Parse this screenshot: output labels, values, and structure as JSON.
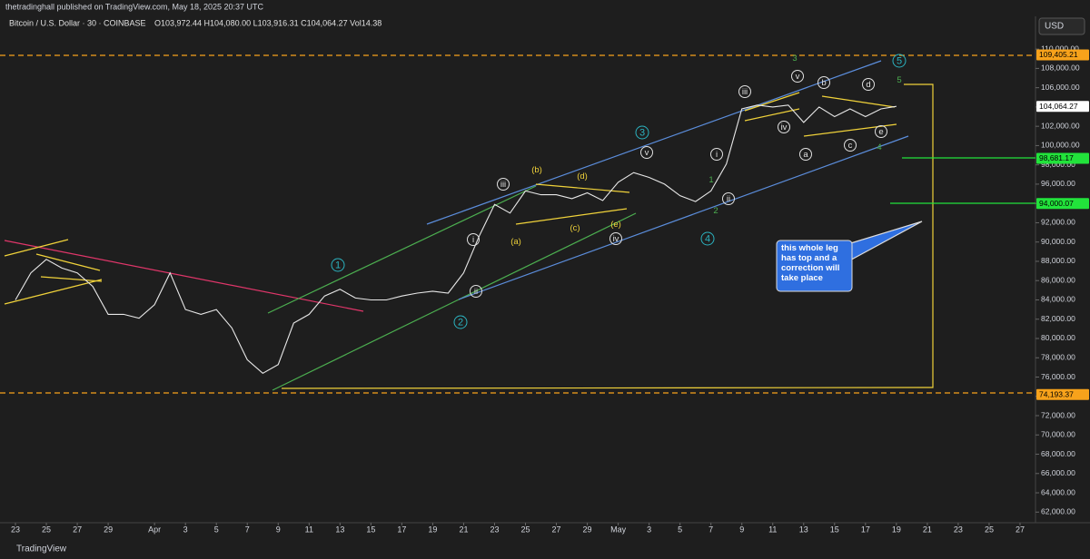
{
  "header": {
    "publisher": "thetradinghall published on TradingView.com, May 18, 2025 20:37 UTC",
    "symbol": "Bitcoin / U.S. Dollar · 30 · COINBASE",
    "ohlc": "O103,972.44 H104,080.00 L103,916.31 C104,064.27 Vol14.38",
    "currency": "USD"
  },
  "footer": {
    "brand": "TradingView"
  },
  "chart_data": {
    "type": "line",
    "color": "#e8e8e8",
    "x": [
      "2025-03-23",
      "2025-03-24",
      "2025-03-25",
      "2025-03-26",
      "2025-03-27",
      "2025-03-28",
      "2025-03-29",
      "2025-03-30",
      "2025-03-31",
      "2025-04-01",
      "2025-04-02",
      "2025-04-03",
      "2025-04-04",
      "2025-04-05",
      "2025-04-06",
      "2025-04-07",
      "2025-04-08",
      "2025-04-09",
      "2025-04-10",
      "2025-04-11",
      "2025-04-12",
      "2025-04-13",
      "2025-04-14",
      "2025-04-15",
      "2025-04-16",
      "2025-04-17",
      "2025-04-18",
      "2025-04-19",
      "2025-04-20",
      "2025-04-21",
      "2025-04-22",
      "2025-04-23",
      "2025-04-24",
      "2025-04-25",
      "2025-04-26",
      "2025-04-27",
      "2025-04-28",
      "2025-04-29",
      "2025-04-30",
      "2025-05-01",
      "2025-05-02",
      "2025-05-03",
      "2025-05-04",
      "2025-05-05",
      "2025-05-06",
      "2025-05-07",
      "2025-05-08",
      "2025-05-09",
      "2025-05-10",
      "2025-05-11",
      "2025-05-12",
      "2025-05-13",
      "2025-05-14",
      "2025-05-15",
      "2025-05-16",
      "2025-05-17",
      "2025-05-18",
      "2025-05-19"
    ],
    "values": [
      84000,
      86800,
      88200,
      87300,
      86800,
      85400,
      82500,
      82500,
      82100,
      83500,
      86800,
      83000,
      82500,
      83000,
      81100,
      77800,
      76400,
      77300,
      81600,
      82500,
      84400,
      85100,
      84200,
      84000,
      84000,
      84400,
      84700,
      84900,
      84700,
      86800,
      90600,
      93900,
      93000,
      95300,
      94900,
      94900,
      94500,
      95100,
      94300,
      96200,
      97200,
      96700,
      96000,
      94800,
      94200,
      95300,
      98100,
      103800,
      104200,
      104000,
      104200,
      102400,
      104000,
      103000,
      103800,
      103000,
      103800,
      104064.27
    ],
    "xlim": [
      "2025-03-22",
      "2025-05-28"
    ],
    "xticks": [
      {
        "value": "2025-03-23",
        "label": "23"
      },
      {
        "value": "2025-03-25",
        "label": "25"
      },
      {
        "value": "2025-03-27",
        "label": "27"
      },
      {
        "value": "2025-03-29",
        "label": "29"
      },
      {
        "value": "2025-04-01",
        "label": "Apr"
      },
      {
        "value": "2025-04-03",
        "label": "3"
      },
      {
        "value": "2025-04-05",
        "label": "5"
      },
      {
        "value": "2025-04-07",
        "label": "7"
      },
      {
        "value": "2025-04-09",
        "label": "9"
      },
      {
        "value": "2025-04-11",
        "label": "11"
      },
      {
        "value": "2025-04-13",
        "label": "13"
      },
      {
        "value": "2025-04-15",
        "label": "15"
      },
      {
        "value": "2025-04-17",
        "label": "17"
      },
      {
        "value": "2025-04-19",
        "label": "19"
      },
      {
        "value": "2025-04-21",
        "label": "21"
      },
      {
        "value": "2025-04-23",
        "label": "23"
      },
      {
        "value": "2025-04-25",
        "label": "25"
      },
      {
        "value": "2025-04-27",
        "label": "27"
      },
      {
        "value": "2025-04-29",
        "label": "29"
      },
      {
        "value": "2025-05-01",
        "label": "May"
      },
      {
        "value": "2025-05-03",
        "label": "3"
      },
      {
        "value": "2025-05-05",
        "label": "5"
      },
      {
        "value": "2025-05-07",
        "label": "7"
      },
      {
        "value": "2025-05-09",
        "label": "9"
      },
      {
        "value": "2025-05-11",
        "label": "11"
      },
      {
        "value": "2025-05-13",
        "label": "13"
      },
      {
        "value": "2025-05-15",
        "label": "15"
      },
      {
        "value": "2025-05-17",
        "label": "17"
      },
      {
        "value": "2025-05-19",
        "label": "19"
      },
      {
        "value": "2025-05-21",
        "label": "21"
      },
      {
        "value": "2025-05-23",
        "label": "23"
      },
      {
        "value": "2025-05-25",
        "label": "25"
      },
      {
        "value": "2025-05-27",
        "label": "27"
      }
    ],
    "ylim": [
      60900,
      113400
    ],
    "yticks": [
      {
        "value": 62000,
        "label": "62,000.00"
      },
      {
        "value": 64000,
        "label": "64,000.00"
      },
      {
        "value": 66000,
        "label": "66,000.00"
      },
      {
        "value": 68000,
        "label": "68,000.00"
      },
      {
        "value": 70000,
        "label": "70,000.00"
      },
      {
        "value": 72000,
        "label": "72,000.00"
      },
      {
        "value": 74000,
        "label": "74,000.00"
      },
      {
        "value": 76000,
        "label": "76,000.00"
      },
      {
        "value": 78000,
        "label": "78,000.00"
      },
      {
        "value": 80000,
        "label": "80,000.00"
      },
      {
        "value": 82000,
        "label": "82,000.00"
      },
      {
        "value": 84000,
        "label": "84,000.00"
      },
      {
        "value": 86000,
        "label": "86,000.00"
      },
      {
        "value": 88000,
        "label": "88,000.00"
      },
      {
        "value": 90000,
        "label": "90,000.00"
      },
      {
        "value": 92000,
        "label": "92,000.00"
      },
      {
        "value": 94000,
        "label": "94,000.00"
      },
      {
        "value": 96000,
        "label": "96,000.00"
      },
      {
        "value": 98000,
        "label": "98,000.00"
      },
      {
        "value": 100000,
        "label": "100,000.00"
      },
      {
        "value": 102000,
        "label": "102,000.00"
      },
      {
        "value": 104000,
        "label": "104,000.00"
      },
      {
        "value": 106000,
        "label": "106,000.00"
      },
      {
        "value": 108000,
        "label": "108,000.00"
      },
      {
        "value": 110000,
        "label": "110,000.00"
      }
    ],
    "levels": [
      {
        "value": 109405.21,
        "label": "109,405.21",
        "color": "#f7a21b"
      },
      {
        "value": 104064.27,
        "label": "104,064.27",
        "color": "#ffffff"
      },
      {
        "value": 98681.17,
        "label": "98,681.17",
        "color": "#22e33b"
      },
      {
        "value": 94000.07,
        "label": "94,000.07",
        "color": "#22e33b"
      },
      {
        "value": 74193.37,
        "label": "74,193.37",
        "color": "#f7a21b"
      }
    ],
    "callout": "this whole leg has top and a correction will take place",
    "waves": [
      "1",
      "2",
      "3",
      "4",
      "5",
      "3",
      "5",
      "1",
      "2",
      "4",
      "i",
      "ii",
      "iii",
      "iv",
      "v",
      "i",
      "ii",
      "iii",
      "iv",
      "v",
      "b",
      "d",
      "e",
      "c",
      "a",
      "(b)",
      "(d)",
      "(a)",
      "(c)",
      "(e)"
    ]
  }
}
